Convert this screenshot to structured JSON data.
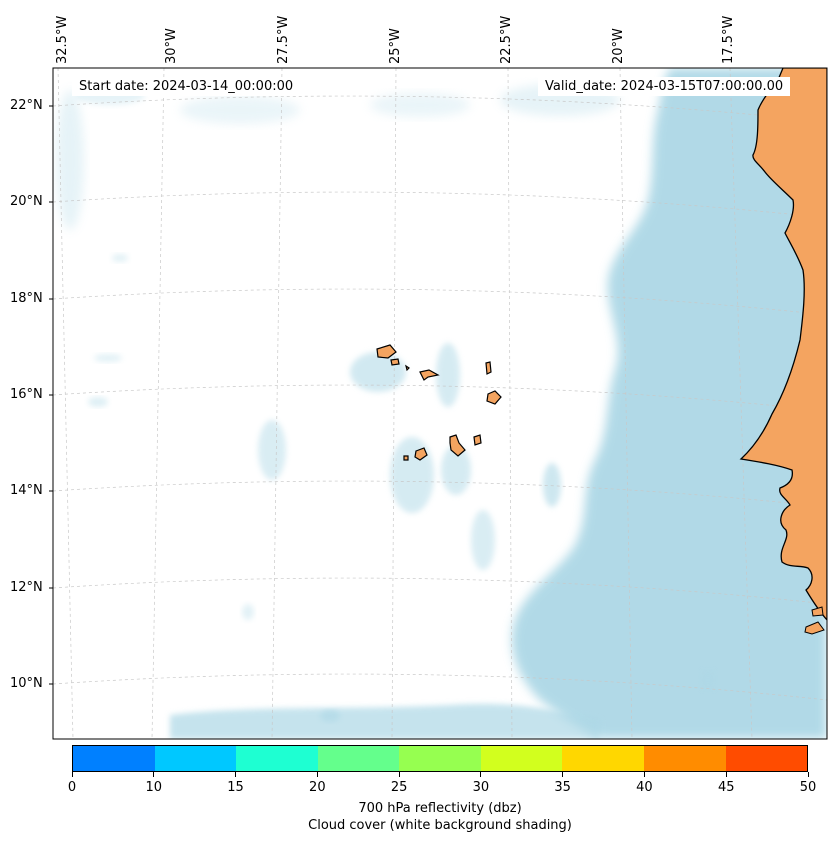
{
  "map": {
    "start_date_label": "Start date: 2024-03-14_00:00:00",
    "valid_date_label": "Valid_date: 2024-03-15T07:00:00.00",
    "lon_labels": [
      "32.5°W",
      "30°W",
      "27.5°W",
      "25°W",
      "22.5°W",
      "20°W",
      "17.5°W"
    ],
    "lat_labels": [
      "22°N",
      "20°N",
      "18°N",
      "16°N",
      "14°N",
      "12°N",
      "10°N"
    ],
    "colors": {
      "ocean": "#ffffff",
      "land": "#f4a460",
      "coastline": "#000000",
      "cloud": "#add8e6",
      "gridline": "#c8c8c8"
    }
  },
  "colorbar": {
    "ticks": [
      "0",
      "10",
      "15",
      "20",
      "25",
      "30",
      "35",
      "40",
      "45",
      "50"
    ],
    "colors": [
      "#0080ff",
      "#00c8ff",
      "#1effd2",
      "#64ff8c",
      "#96ff50",
      "#d2ff1e",
      "#ffd700",
      "#ff8c00",
      "#ff4c00"
    ],
    "title_line1": "700 hPa reflectivity (dbz)",
    "title_line2": "Cloud cover (white background shading)"
  }
}
